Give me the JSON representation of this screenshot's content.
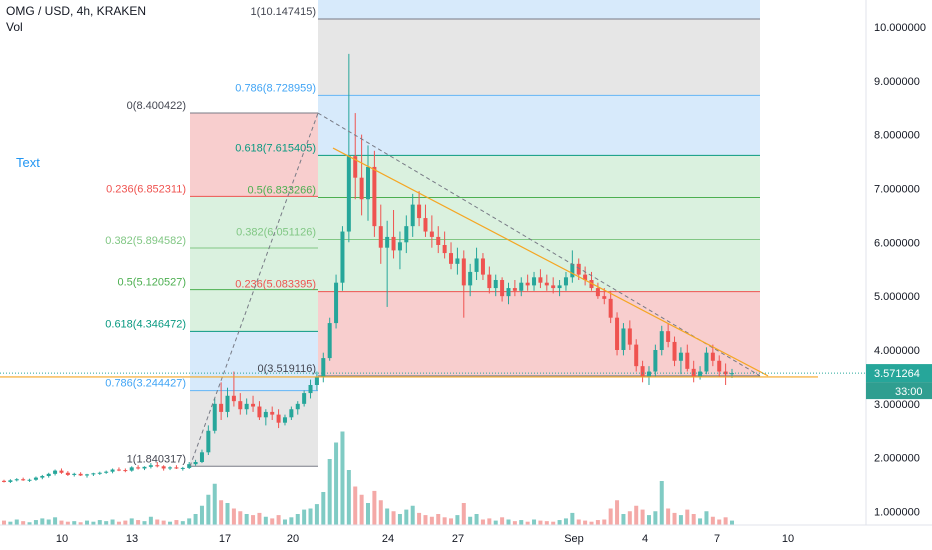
{
  "header": {
    "symbol_line": "OMG / USD, 4h, KRAKEN",
    "volume_label": "Vol"
  },
  "annotation_text": "Text",
  "colors": {
    "up": "#26a69a",
    "down": "#ef5350",
    "fib_red": "#f7c9c9",
    "fib_green": "#d6efdb",
    "fib_blue": "#d3e8fb",
    "fib_gray": "#e3e3e3",
    "trend": "#f5a623",
    "price_tag": "#26a69a"
  },
  "chart_data": {
    "type": "candlestick",
    "y_axis": {
      "range": [
        0.75,
        10.5
      ],
      "ticks": [
        "1.000000",
        "2.000000",
        "3.000000",
        "4.000000",
        "5.000000",
        "6.000000",
        "7.000000",
        "8.000000",
        "9.000000",
        "10.000000"
      ]
    },
    "x_axis": {
      "ticks": [
        "10",
        "13",
        "17",
        "20",
        "24",
        "27",
        "Sep",
        "4",
        "7",
        "10"
      ]
    },
    "last_price": "3.571264",
    "countdown": "33:00",
    "fib_retracement_1": {
      "levels": [
        {
          "label": "0(8.400422)",
          "value": 8.400422
        },
        {
          "label": "0.236(6.852311)",
          "value": 6.852311
        },
        {
          "label": "0.382(5.894582)",
          "value": 5.894582
        },
        {
          "label": "0.5(5.120527)",
          "value": 5.120527
        },
        {
          "label": "0.618(4.346472)",
          "value": 4.346472
        },
        {
          "label": "0.786(3.244427)",
          "value": 3.244427
        },
        {
          "label": "1(1.840317)",
          "value": 1.840317
        }
      ]
    },
    "fib_retracement_2": {
      "levels": [
        {
          "label": "1(10.147415)",
          "value": 10.147415
        },
        {
          "label": "0.786(8.728959)",
          "value": 8.728959
        },
        {
          "label": "0.618(7.615405)",
          "value": 7.615405
        },
        {
          "label": "0.5(6.833266)",
          "value": 6.833266
        },
        {
          "label": "0.382(6.051126)",
          "value": 6.051126
        },
        {
          "label": "0.236(5.083395)",
          "value": 5.083395
        },
        {
          "label": "0(3.519116)",
          "value": 3.519116
        }
      ]
    },
    "candles": [
      [
        1.57,
        1.59,
        1.54,
        1.55
      ],
      [
        1.55,
        1.6,
        1.53,
        1.58
      ],
      [
        1.58,
        1.62,
        1.56,
        1.6
      ],
      [
        1.6,
        1.63,
        1.57,
        1.58
      ],
      [
        1.58,
        1.61,
        1.55,
        1.59
      ],
      [
        1.59,
        1.65,
        1.57,
        1.63
      ],
      [
        1.63,
        1.68,
        1.6,
        1.66
      ],
      [
        1.66,
        1.72,
        1.63,
        1.7
      ],
      [
        1.7,
        1.78,
        1.67,
        1.76
      ],
      [
        1.76,
        1.8,
        1.7,
        1.72
      ],
      [
        1.72,
        1.75,
        1.66,
        1.68
      ],
      [
        1.68,
        1.72,
        1.65,
        1.7
      ],
      [
        1.7,
        1.73,
        1.66,
        1.67
      ],
      [
        1.67,
        1.7,
        1.63,
        1.69
      ],
      [
        1.69,
        1.72,
        1.66,
        1.71
      ],
      [
        1.71,
        1.74,
        1.68,
        1.72
      ],
      [
        1.72,
        1.76,
        1.7,
        1.74
      ],
      [
        1.74,
        1.8,
        1.71,
        1.78
      ],
      [
        1.78,
        1.82,
        1.75,
        1.77
      ],
      [
        1.77,
        1.8,
        1.73,
        1.76
      ],
      [
        1.76,
        1.84,
        1.74,
        1.82
      ],
      [
        1.82,
        1.86,
        1.78,
        1.8
      ],
      [
        1.8,
        1.84,
        1.77,
        1.83
      ],
      [
        1.83,
        1.9,
        1.8,
        1.86
      ],
      [
        1.86,
        1.92,
        1.82,
        1.84
      ],
      [
        1.84,
        1.86,
        1.76,
        1.8
      ],
      [
        1.8,
        1.84,
        1.77,
        1.82
      ],
      [
        1.82,
        1.86,
        1.79,
        1.8
      ],
      [
        1.8,
        1.83,
        1.76,
        1.81
      ],
      [
        1.81,
        1.92,
        1.79,
        1.88
      ],
      [
        1.88,
        1.96,
        1.85,
        1.92
      ],
      [
        1.92,
        2.15,
        1.9,
        2.1
      ],
      [
        2.1,
        2.6,
        2.05,
        2.5
      ],
      [
        2.5,
        3.1,
        2.45,
        3.0
      ],
      [
        3.0,
        3.4,
        2.7,
        2.85
      ],
      [
        2.85,
        3.3,
        2.75,
        3.15
      ],
      [
        3.15,
        3.6,
        2.95,
        3.05
      ],
      [
        3.05,
        3.2,
        2.8,
        2.9
      ],
      [
        2.9,
        3.1,
        2.8,
        3.0
      ],
      [
        3.0,
        3.15,
        2.85,
        2.95
      ],
      [
        2.95,
        3.05,
        2.7,
        2.75
      ],
      [
        2.75,
        2.9,
        2.6,
        2.85
      ],
      [
        2.85,
        2.95,
        2.7,
        2.8
      ],
      [
        2.8,
        2.9,
        2.55,
        2.65
      ],
      [
        2.65,
        2.8,
        2.6,
        2.75
      ],
      [
        2.75,
        2.95,
        2.7,
        2.9
      ],
      [
        2.9,
        3.05,
        2.8,
        3.0
      ],
      [
        3.0,
        3.25,
        2.95,
        3.2
      ],
      [
        3.2,
        3.45,
        3.1,
        3.35
      ],
      [
        3.35,
        3.6,
        3.25,
        3.5
      ],
      [
        3.5,
        3.95,
        3.4,
        3.85
      ],
      [
        3.85,
        4.6,
        3.8,
        4.5
      ],
      [
        4.5,
        5.4,
        4.4,
        5.25
      ],
      [
        5.25,
        6.3,
        5.1,
        6.2
      ],
      [
        6.2,
        9.5,
        6.0,
        7.6
      ],
      [
        7.6,
        8.4,
        6.8,
        7.2
      ],
      [
        7.2,
        8.0,
        6.5,
        6.8
      ],
      [
        6.8,
        7.8,
        6.4,
        7.4
      ],
      [
        7.4,
        7.7,
        6.1,
        6.3
      ],
      [
        6.3,
        6.7,
        5.6,
        5.9
      ],
      [
        5.9,
        6.4,
        4.8,
        6.1
      ],
      [
        6.1,
        6.6,
        5.7,
        5.85
      ],
      [
        5.85,
        6.2,
        5.5,
        6.0
      ],
      [
        6.0,
        6.5,
        5.8,
        6.3
      ],
      [
        6.3,
        6.9,
        6.1,
        6.7
      ],
      [
        6.7,
        6.95,
        6.3,
        6.45
      ],
      [
        6.45,
        6.7,
        6.1,
        6.2
      ],
      [
        6.2,
        6.5,
        5.9,
        6.1
      ],
      [
        6.1,
        6.3,
        5.8,
        5.95
      ],
      [
        5.95,
        6.2,
        5.7,
        5.8
      ],
      [
        5.8,
        6.0,
        5.5,
        5.6
      ],
      [
        5.6,
        5.9,
        5.4,
        5.7
      ],
      [
        5.7,
        5.85,
        4.6,
        5.2
      ],
      [
        5.2,
        5.6,
        5.0,
        5.45
      ],
      [
        5.45,
        5.9,
        5.3,
        5.7
      ],
      [
        5.7,
        5.8,
        5.3,
        5.4
      ],
      [
        5.4,
        5.55,
        5.05,
        5.15
      ],
      [
        5.15,
        5.4,
        5.0,
        5.3
      ],
      [
        5.3,
        5.35,
        4.9,
        5.0
      ],
      [
        5.0,
        5.25,
        4.85,
        5.15
      ],
      [
        5.15,
        5.3,
        5.0,
        5.1
      ],
      [
        5.1,
        5.35,
        5.0,
        5.25
      ],
      [
        5.25,
        5.4,
        5.1,
        5.2
      ],
      [
        5.2,
        5.45,
        5.1,
        5.35
      ],
      [
        5.35,
        5.5,
        5.15,
        5.25
      ],
      [
        5.25,
        5.4,
        5.1,
        5.2
      ],
      [
        5.2,
        5.35,
        5.05,
        5.15
      ],
      [
        5.15,
        5.3,
        5.0,
        5.2
      ],
      [
        5.2,
        5.45,
        5.1,
        5.35
      ],
      [
        5.35,
        5.85,
        5.25,
        5.6
      ],
      [
        5.6,
        5.7,
        5.3,
        5.4
      ],
      [
        5.4,
        5.55,
        5.2,
        5.3
      ],
      [
        5.3,
        5.45,
        5.1,
        5.15
      ],
      [
        5.15,
        5.25,
        4.95,
        5.0
      ],
      [
        5.0,
        5.15,
        4.85,
        4.95
      ],
      [
        4.95,
        5.1,
        4.5,
        4.6
      ],
      [
        4.6,
        4.7,
        3.9,
        4.0
      ],
      [
        4.0,
        4.5,
        3.9,
        4.4
      ],
      [
        4.4,
        4.55,
        4.0,
        4.1
      ],
      [
        4.1,
        4.2,
        3.6,
        3.7
      ],
      [
        3.7,
        3.8,
        3.4,
        3.5
      ],
      [
        3.5,
        3.7,
        3.35,
        3.6
      ],
      [
        3.6,
        4.1,
        3.5,
        4.0
      ],
      [
        4.0,
        4.45,
        3.9,
        4.35
      ],
      [
        4.35,
        4.5,
        4.05,
        4.15
      ],
      [
        4.15,
        4.25,
        3.7,
        3.8
      ],
      [
        3.8,
        4.05,
        3.55,
        3.95
      ],
      [
        3.95,
        4.1,
        3.6,
        3.65
      ],
      [
        3.65,
        3.8,
        3.4,
        3.5
      ],
      [
        3.5,
        3.7,
        3.45,
        3.6
      ],
      [
        3.6,
        4.05,
        3.55,
        3.95
      ],
      [
        3.95,
        4.1,
        3.7,
        3.8
      ],
      [
        3.8,
        3.9,
        3.5,
        3.6
      ],
      [
        3.6,
        3.75,
        3.35,
        3.55
      ],
      [
        3.55,
        3.65,
        3.48,
        3.57
      ]
    ],
    "volumes": [
      0.08,
      0.06,
      0.1,
      0.07,
      0.05,
      0.09,
      0.12,
      0.1,
      0.14,
      0.08,
      0.06,
      0.07,
      0.05,
      0.08,
      0.06,
      0.09,
      0.07,
      0.1,
      0.06,
      0.08,
      0.12,
      0.09,
      0.07,
      0.15,
      0.1,
      0.08,
      0.06,
      0.09,
      0.07,
      0.12,
      0.2,
      0.35,
      0.55,
      0.75,
      0.45,
      0.4,
      0.3,
      0.25,
      0.2,
      0.18,
      0.22,
      0.15,
      0.12,
      0.18,
      0.1,
      0.14,
      0.2,
      0.28,
      0.3,
      0.38,
      0.6,
      1.2,
      1.5,
      1.7,
      1.0,
      0.7,
      0.55,
      0.4,
      0.62,
      0.45,
      0.3,
      0.25,
      0.2,
      0.28,
      0.35,
      0.22,
      0.18,
      0.15,
      0.2,
      0.14,
      0.12,
      0.18,
      0.4,
      0.15,
      0.2,
      0.1,
      0.12,
      0.08,
      0.14,
      0.1,
      0.07,
      0.09,
      0.06,
      0.1,
      0.08,
      0.07,
      0.06,
      0.09,
      0.12,
      0.22,
      0.1,
      0.08,
      0.06,
      0.09,
      0.1,
      0.3,
      0.45,
      0.2,
      0.25,
      0.35,
      0.28,
      0.18,
      0.25,
      0.8,
      0.3,
      0.22,
      0.18,
      0.28,
      0.2,
      0.12,
      0.25,
      0.15,
      0.1,
      0.14,
      0.08
    ]
  }
}
